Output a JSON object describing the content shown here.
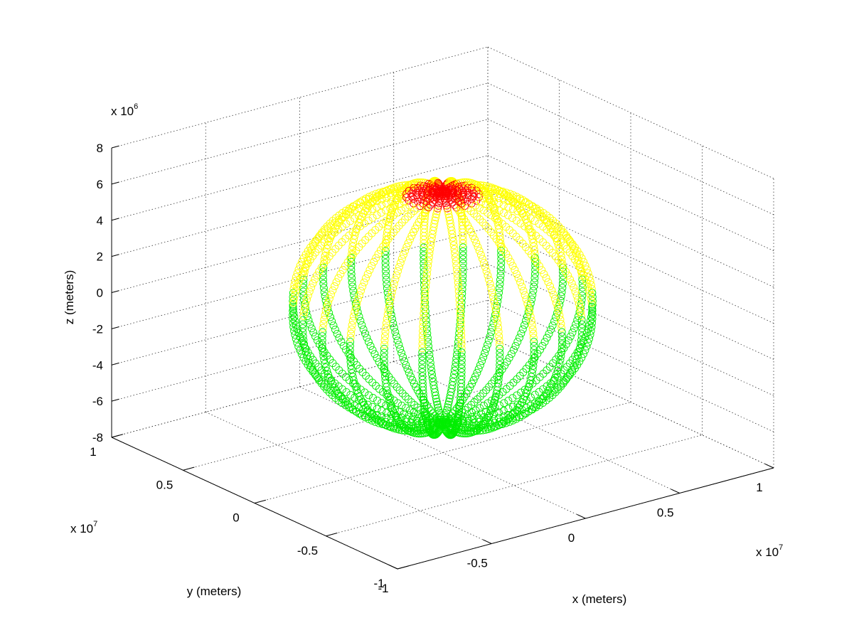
{
  "chart_data": {
    "type": "scatter",
    "dimension": "3d",
    "title": "",
    "xlabel": "x (meters)",
    "ylabel": "y (meters)",
    "zlabel": "z (meters)",
    "x_multiplier": {
      "base": "x 10",
      "exponent": "7"
    },
    "y_multiplier": {
      "base": "x 10",
      "exponent": "7"
    },
    "z_multiplier": {
      "base": "x 10",
      "exponent": "6"
    },
    "xlim": [
      -1,
      1
    ],
    "ylim": [
      -1,
      1
    ],
    "zlim": [
      -8,
      8
    ],
    "x_ticks": [
      -1,
      -0.5,
      0,
      0.5,
      1
    ],
    "y_ticks": [
      -1,
      -0.5,
      0,
      0.5,
      1
    ],
    "z_ticks": [
      -8,
      -6,
      -4,
      -2,
      0,
      2,
      4,
      6,
      8
    ],
    "x_tick_labels": [
      "-1",
      "-0.5",
      "0",
      "0.5",
      "1"
    ],
    "y_tick_labels": [
      "-1",
      "-0.5",
      "0",
      "0.5",
      "1"
    ],
    "z_tick_labels": [
      "-8",
      "-6",
      "-4",
      "-2",
      "0",
      "2",
      "4",
      "6",
      "8"
    ],
    "grid": true,
    "legend": "none",
    "marker": "open-circle",
    "description_of_data": "Satellite ground-track style orbits on a sphere of radius about 6.4e6 m; points colored by latitude band",
    "sphere_radius_m": 6400000,
    "num_meridian_tracks": 12,
    "series": [
      {
        "color": "#ff0000",
        "lat_min_deg": 75,
        "lat_max_deg": 90
      },
      {
        "color": "#ffff00",
        "lat_min_deg": 5,
        "lat_max_deg": 75
      },
      {
        "color": "#00ee00",
        "lat_min_deg": -90,
        "lat_max_deg": 5
      }
    ]
  }
}
